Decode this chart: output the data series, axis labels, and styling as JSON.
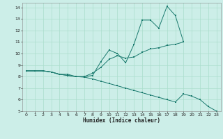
{
  "xlabel": "Humidex (Indice chaleur)",
  "bg_color": "#cceee8",
  "grid_color": "#aaddcc",
  "line_color": "#1a7a6e",
  "xlim": [
    -0.5,
    23.5
  ],
  "ylim": [
    5,
    14.4
  ],
  "xticks": [
    0,
    1,
    2,
    3,
    4,
    5,
    6,
    7,
    8,
    9,
    10,
    11,
    12,
    13,
    14,
    15,
    16,
    17,
    18,
    19,
    20,
    21,
    22,
    23
  ],
  "yticks": [
    5,
    6,
    7,
    8,
    9,
    10,
    11,
    12,
    13,
    14
  ],
  "curve1_x": [
    0,
    1,
    2,
    3,
    4,
    5,
    6,
    7,
    8,
    9,
    10,
    11,
    12,
    13,
    14,
    15,
    16,
    17,
    18,
    19
  ],
  "curve1_y": [
    8.5,
    8.5,
    8.5,
    8.4,
    8.2,
    8.2,
    8.0,
    8.0,
    8.1,
    9.3,
    10.3,
    10.0,
    9.2,
    10.8,
    12.9,
    12.9,
    12.2,
    14.1,
    13.3,
    11.0
  ],
  "curve2_x": [
    0,
    1,
    2,
    3,
    4,
    5,
    6,
    7,
    8,
    9,
    10,
    11,
    12,
    13,
    14,
    15,
    16,
    17,
    18,
    19
  ],
  "curve2_y": [
    8.5,
    8.5,
    8.5,
    8.4,
    8.2,
    8.1,
    8.0,
    8.0,
    8.3,
    8.8,
    9.5,
    9.8,
    9.6,
    9.7,
    10.1,
    10.4,
    10.5,
    10.7,
    10.8,
    11.0
  ],
  "curve3_x": [
    0,
    1,
    2,
    3,
    4,
    5,
    6,
    7,
    8,
    9,
    10,
    11,
    12,
    13,
    14,
    15,
    16,
    17,
    18,
    19,
    20,
    21,
    22,
    23
  ],
  "curve3_y": [
    8.5,
    8.5,
    8.5,
    8.4,
    8.2,
    8.1,
    8.0,
    7.95,
    7.8,
    7.6,
    7.4,
    7.2,
    7.0,
    6.8,
    6.6,
    6.4,
    6.2,
    6.0,
    5.8,
    6.5,
    6.3,
    6.0,
    5.4,
    5.0
  ]
}
